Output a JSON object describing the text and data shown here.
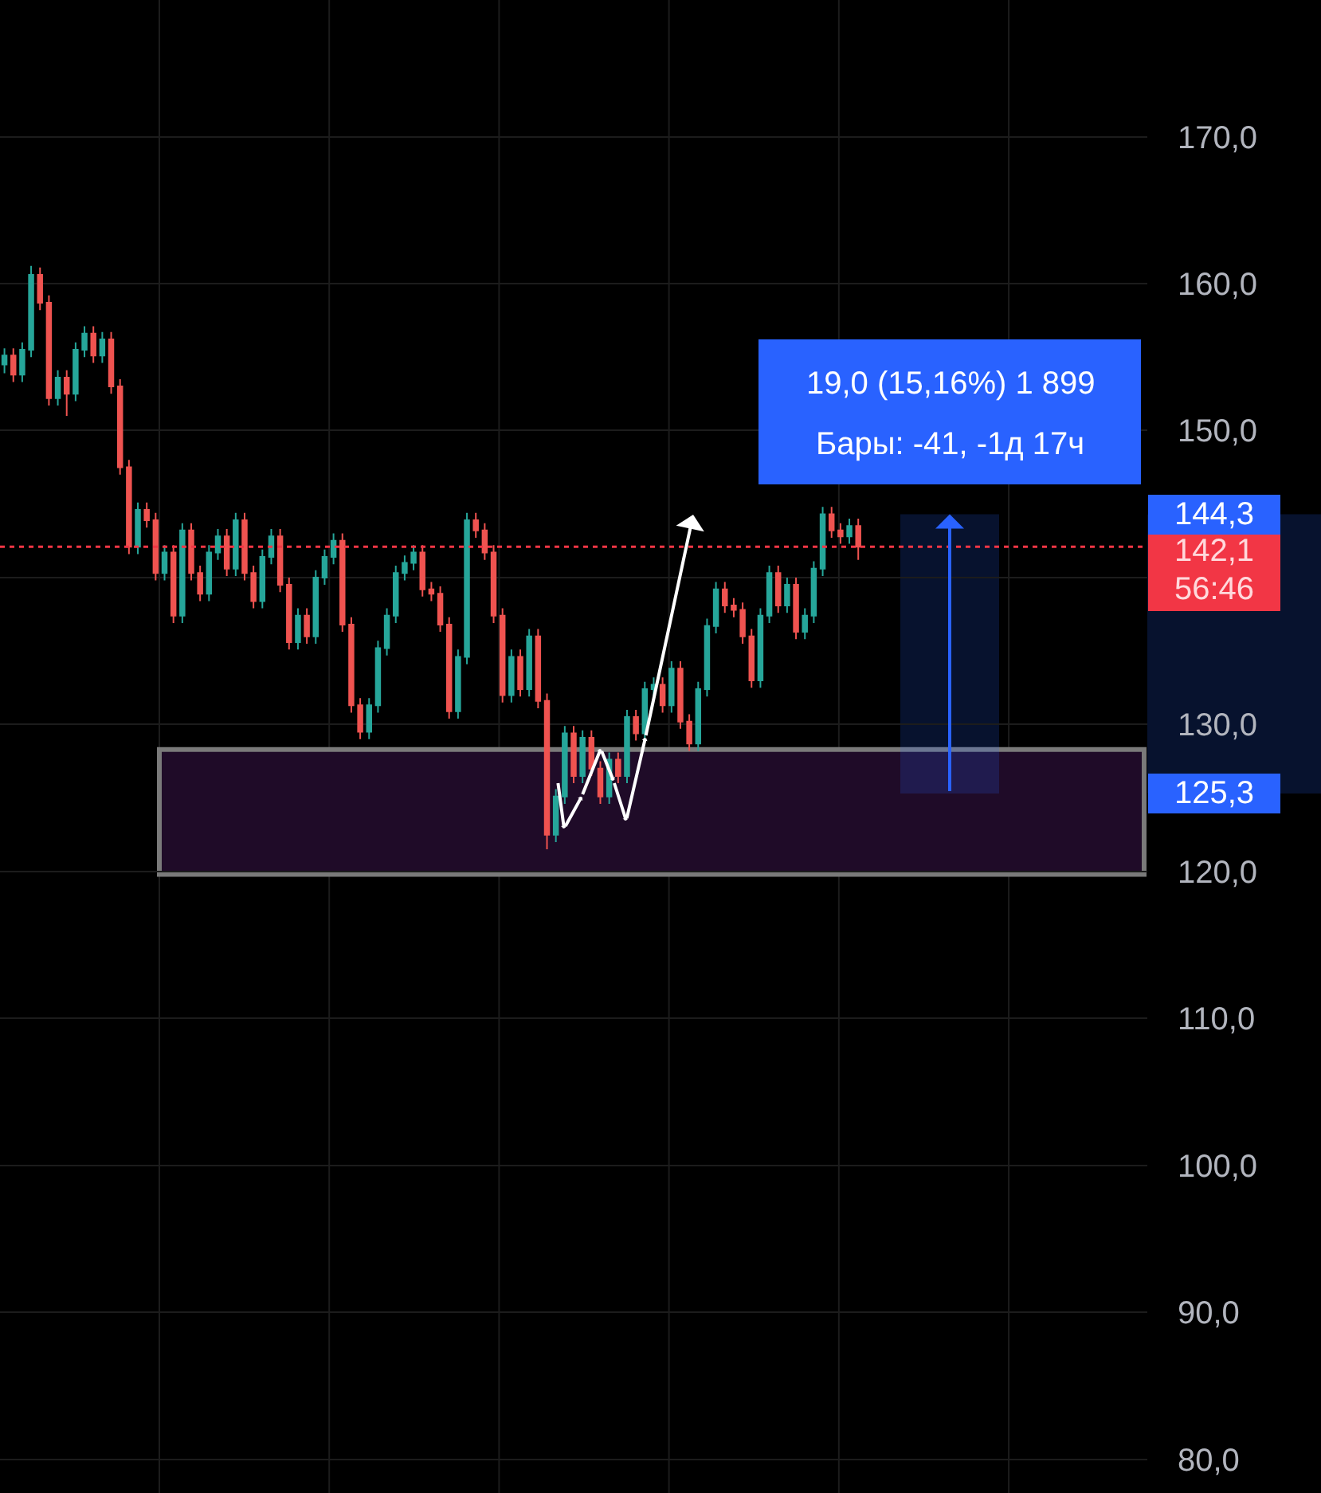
{
  "chart_data": {
    "type": "candlestick",
    "categories": [
      null,
      null,
      null,
      null,
      null,
      null,
      null,
      null,
      null,
      null,
      null,
      null,
      null,
      null,
      null,
      null,
      null,
      null,
      null,
      null,
      null,
      null,
      null,
      null,
      null,
      null,
      null,
      null,
      null,
      null,
      null,
      null,
      null,
      null,
      null,
      null,
      null,
      null,
      null,
      null,
      null,
      null,
      null,
      null,
      null,
      null,
      null,
      null,
      null,
      null,
      null,
      null,
      null,
      null,
      null,
      null,
      null,
      null,
      null,
      null,
      null,
      null,
      null,
      null,
      null,
      null,
      null,
      null,
      null,
      null,
      null,
      null,
      null,
      null,
      null,
      null,
      null,
      null,
      null,
      null,
      null,
      null,
      null,
      null,
      null,
      null,
      null,
      null,
      null,
      null,
      null,
      null,
      null,
      null,
      null,
      null,
      null,
      null,
      null,
      null,
      null,
      null,
      null,
      null,
      null,
      null,
      null,
      null,
      null,
      null,
      null,
      null,
      null,
      null,
      null,
      null,
      null,
      null,
      null,
      null,
      null,
      null,
      null,
      null,
      null,
      null,
      null,
      null,
      null
    ],
    "ohlc": [
      [
        154.5,
        155.6,
        153.9,
        155.1
      ],
      [
        155.1,
        155.6,
        153.3,
        153.8
      ],
      [
        153.8,
        156.0,
        153.3,
        155.5
      ],
      [
        155.5,
        161.2,
        155.0,
        160.6
      ],
      [
        160.6,
        161.1,
        158.2,
        158.7
      ],
      [
        158.7,
        159.2,
        151.7,
        152.2
      ],
      [
        152.2,
        154.1,
        151.7,
        153.6
      ],
      [
        153.6,
        154.1,
        151.0,
        152.5
      ],
      [
        152.5,
        156.0,
        152.0,
        155.5
      ],
      [
        155.5,
        157.1,
        155.0,
        156.6
      ],
      [
        156.6,
        157.1,
        154.6,
        155.1
      ],
      [
        155.1,
        156.7,
        154.6,
        156.2
      ],
      [
        156.2,
        156.7,
        152.5,
        153.0
      ],
      [
        153.0,
        153.5,
        147.0,
        147.5
      ],
      [
        147.5,
        148.0,
        141.6,
        142.1
      ],
      [
        142.1,
        145.1,
        141.6,
        144.6
      ],
      [
        144.6,
        145.1,
        143.4,
        143.9
      ],
      [
        143.9,
        144.4,
        139.8,
        140.3
      ],
      [
        140.3,
        142.2,
        139.8,
        141.7
      ],
      [
        141.7,
        142.2,
        136.9,
        137.4
      ],
      [
        137.4,
        143.7,
        136.9,
        143.2
      ],
      [
        143.2,
        143.7,
        139.8,
        140.3
      ],
      [
        140.3,
        140.8,
        138.4,
        138.9
      ],
      [
        138.9,
        142.2,
        138.4,
        141.7
      ],
      [
        141.7,
        143.3,
        141.2,
        142.8
      ],
      [
        142.8,
        143.3,
        140.1,
        140.6
      ],
      [
        140.6,
        144.4,
        140.1,
        143.9
      ],
      [
        143.9,
        144.4,
        139.8,
        140.3
      ],
      [
        140.3,
        140.8,
        137.9,
        138.4
      ],
      [
        138.4,
        141.9,
        137.9,
        141.4
      ],
      [
        141.4,
        143.3,
        140.9,
        142.8
      ],
      [
        142.8,
        143.3,
        139.0,
        139.5
      ],
      [
        139.5,
        140.0,
        135.1,
        135.6
      ],
      [
        135.6,
        137.9,
        135.1,
        137.4
      ],
      [
        137.4,
        137.9,
        135.5,
        136.0
      ],
      [
        136.0,
        140.5,
        135.5,
        140.0
      ],
      [
        140.0,
        141.9,
        139.5,
        141.4
      ],
      [
        141.4,
        143.0,
        140.9,
        142.5
      ],
      [
        142.5,
        143.0,
        136.3,
        136.8
      ],
      [
        136.8,
        137.3,
        130.8,
        131.3
      ],
      [
        131.3,
        131.8,
        129.0,
        129.5
      ],
      [
        129.5,
        131.8,
        129.0,
        131.3
      ],
      [
        131.3,
        135.7,
        130.8,
        135.2
      ],
      [
        135.2,
        137.9,
        134.7,
        137.4
      ],
      [
        137.4,
        140.8,
        136.9,
        140.3
      ],
      [
        140.3,
        141.5,
        139.8,
        141.0
      ],
      [
        141.0,
        142.2,
        140.5,
        141.7
      ],
      [
        141.7,
        142.2,
        138.7,
        139.2
      ],
      [
        139.2,
        139.7,
        138.4,
        138.9
      ],
      [
        138.9,
        139.4,
        136.3,
        136.8
      ],
      [
        136.8,
        137.3,
        130.4,
        130.9
      ],
      [
        130.9,
        135.1,
        130.4,
        134.6
      ],
      [
        134.6,
        144.4,
        134.1,
        143.9
      ],
      [
        143.9,
        144.4,
        142.7,
        143.2
      ],
      [
        143.2,
        143.7,
        141.2,
        141.7
      ],
      [
        141.7,
        142.2,
        136.9,
        137.4
      ],
      [
        137.4,
        137.9,
        131.5,
        132.0
      ],
      [
        132.0,
        135.1,
        131.5,
        134.6
      ],
      [
        134.6,
        135.1,
        131.9,
        132.4
      ],
      [
        132.4,
        136.5,
        131.9,
        136.0
      ],
      [
        136.0,
        136.5,
        131.1,
        131.6
      ],
      [
        131.6,
        132.1,
        121.5,
        122.5
      ],
      [
        122.5,
        125.6,
        122.0,
        125.1
      ],
      [
        125.1,
        129.9,
        124.6,
        129.4
      ],
      [
        129.4,
        129.9,
        126.0,
        126.5
      ],
      [
        126.5,
        129.6,
        126.0,
        129.1
      ],
      [
        129.1,
        129.6,
        126.5,
        127.0
      ],
      [
        127.0,
        127.5,
        124.6,
        125.1
      ],
      [
        125.1,
        128.1,
        124.6,
        127.6
      ],
      [
        127.6,
        128.1,
        126.0,
        126.5
      ],
      [
        126.5,
        131.0,
        126.0,
        130.5
      ],
      [
        130.5,
        131.0,
        128.9,
        129.4
      ],
      [
        129.4,
        132.9,
        128.9,
        132.4
      ],
      [
        132.4,
        133.2,
        131.9,
        132.7
      ],
      [
        132.7,
        133.2,
        130.8,
        131.3
      ],
      [
        131.3,
        134.3,
        130.8,
        133.8
      ],
      [
        133.8,
        134.3,
        129.7,
        130.2
      ],
      [
        130.2,
        130.7,
        128.2,
        128.7
      ],
      [
        128.7,
        132.9,
        128.2,
        132.4
      ],
      [
        132.4,
        137.2,
        131.9,
        136.7
      ],
      [
        136.7,
        139.7,
        136.2,
        139.2
      ],
      [
        139.2,
        139.7,
        137.6,
        138.1
      ],
      [
        138.1,
        138.6,
        137.3,
        137.8
      ],
      [
        137.8,
        138.3,
        135.5,
        136.0
      ],
      [
        136.0,
        136.5,
        132.5,
        133.0
      ],
      [
        133.0,
        137.9,
        132.5,
        137.4
      ],
      [
        137.4,
        140.8,
        136.9,
        140.3
      ],
      [
        140.3,
        140.8,
        137.6,
        138.1
      ],
      [
        138.1,
        140.0,
        137.6,
        139.5
      ],
      [
        139.5,
        140.0,
        135.8,
        136.3
      ],
      [
        136.3,
        137.9,
        135.8,
        137.4
      ],
      [
        137.4,
        141.1,
        136.9,
        140.6
      ],
      [
        140.6,
        144.8,
        140.1,
        144.3
      ],
      [
        144.3,
        144.8,
        142.7,
        143.2
      ],
      [
        143.2,
        143.7,
        142.3,
        142.8
      ],
      [
        142.8,
        144.0,
        142.3,
        143.5
      ],
      [
        143.5,
        144.0,
        141.2,
        142.1
      ],
      null,
      null,
      null,
      null,
      null,
      null,
      null,
      null,
      null,
      null,
      null,
      null,
      null,
      null,
      null,
      null,
      null,
      null,
      null,
      null,
      null,
      null,
      null,
      null,
      null,
      null,
      null,
      null,
      null,
      null,
      null,
      null
    ],
    "colors": [
      "#26a69a",
      "#ef5350",
      "#26a69a",
      "#26a69a",
      "#ef5350",
      "#ef5350",
      "#26a69a",
      "#ef5350",
      "#26a69a",
      "#26a69a",
      "#ef5350",
      "#26a69a",
      "#ef5350",
      "#ef5350",
      "#ef5350",
      "#26a69a",
      "#ef5350",
      "#ef5350",
      "#26a69a",
      "#ef5350",
      "#26a69a",
      "#ef5350",
      "#ef5350",
      "#26a69a",
      "#26a69a",
      "#ef5350",
      "#26a69a",
      "#ef5350",
      "#ef5350",
      "#26a69a",
      "#26a69a",
      "#ef5350",
      "#ef5350",
      "#26a69a",
      "#ef5350",
      "#26a69a",
      "#26a69a",
      "#26a69a",
      "#ef5350",
      "#ef5350",
      "#ef5350",
      "#26a69a",
      "#26a69a",
      "#26a69a",
      "#26a69a",
      "#26a69a",
      "#26a69a",
      "#ef5350",
      "#ef5350",
      "#ef5350",
      "#ef5350",
      "#26a69a",
      "#26a69a",
      "#ef5350",
      "#ef5350",
      "#ef5350",
      "#ef5350",
      "#26a69a",
      "#ef5350",
      "#26a69a",
      "#ef5350",
      "#ef5350",
      "#26a69a",
      "#26a69a",
      "#ef5350",
      "#26a69a",
      "#ef5350",
      "#ef5350",
      "#26a69a",
      "#ef5350",
      "#26a69a",
      "#ef5350",
      "#26a69a",
      "#26a69a",
      "#ef5350",
      "#26a69a",
      "#ef5350",
      "#ef5350",
      "#26a69a",
      "#26a69a",
      "#26a69a",
      "#ef5350",
      "#ef5350",
      "#ef5350",
      "#ef5350",
      "#26a69a",
      "#26a69a",
      "#ef5350",
      "#26a69a",
      "#ef5350",
      "#26a69a",
      "#26a69a",
      "#26a69a",
      "#ef5350",
      "#ef5350",
      "#26a69a",
      "#ef5350",
      null,
      null,
      null,
      null,
      null,
      null,
      null,
      null,
      null,
      null,
      null,
      null,
      null,
      null,
      null,
      null,
      null,
      null,
      null,
      null,
      null,
      null,
      null,
      null,
      null,
      null,
      null,
      null,
      null,
      null,
      null,
      null
    ],
    "ylim": [
      77.7,
      179.3
    ],
    "yticks": [
      {
        "value": 80,
        "label": "80,0"
      },
      {
        "value": 90,
        "label": "90,0"
      },
      {
        "value": 100,
        "label": "100,0"
      },
      {
        "value": 110,
        "label": "110,0"
      },
      {
        "value": 120,
        "label": "120,0"
      },
      {
        "value": 130,
        "label": "130,0"
      },
      {
        "value": 140,
        "label": null
      },
      {
        "value": 150,
        "label": "150,0"
      },
      {
        "value": 160,
        "label": "160,0"
      },
      {
        "value": 170,
        "label": "170,0"
      }
    ],
    "grid": true,
    "tick_labels": "y",
    "ref_lines": [
      {
        "axis": "y",
        "value": 142.1,
        "label": "142,1",
        "color": "#f23645",
        "line_style": "dotted"
      }
    ],
    "bands": [
      {
        "axis": "y",
        "from": 119.8,
        "to": 128.3,
        "color": "#1f0b28"
      },
      {
        "axis": "y",
        "from": 125.3,
        "to": 144.3,
        "color": "#2962ff"
      }
    ],
    "annotations": [
      "19,0 (15,16%) 1 899",
      "Бары: -41, -1д 17ч",
      "56:46",
      "144,3",
      "125,3"
    ]
  }
}
